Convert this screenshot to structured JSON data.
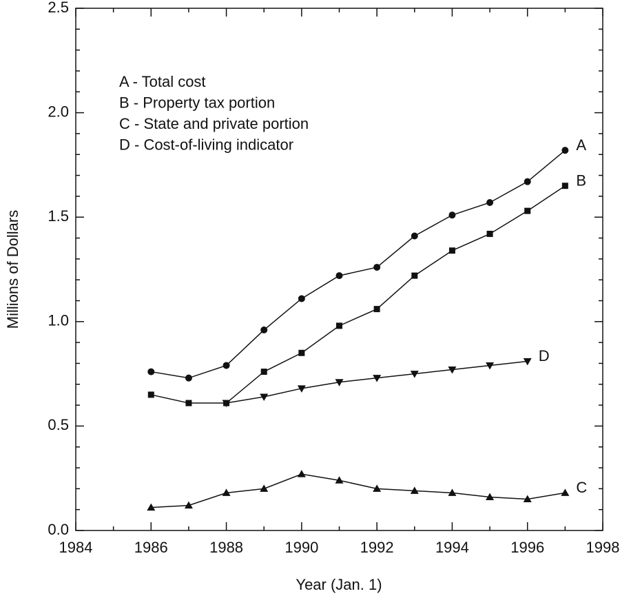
{
  "chart_data": {
    "type": "line",
    "xlabel": "Year (Jan. 1)",
    "ylabel": "Millions of Dollars",
    "x": [
      1986,
      1987,
      1988,
      1989,
      1990,
      1991,
      1992,
      1993,
      1994,
      1995,
      1996,
      1997
    ],
    "series": [
      {
        "name": "A - Total cost",
        "label": "A",
        "marker": "circle",
        "color": "#111111",
        "values": [
          0.76,
          0.73,
          0.79,
          0.96,
          1.11,
          1.22,
          1.26,
          1.41,
          1.51,
          1.57,
          1.67,
          1.82
        ]
      },
      {
        "name": "B - Property tax portion",
        "label": "B",
        "marker": "square",
        "color": "#111111",
        "values": [
          0.65,
          0.61,
          0.61,
          0.76,
          0.85,
          0.98,
          1.06,
          1.22,
          1.34,
          1.42,
          1.53,
          1.65
        ]
      },
      {
        "name": "C - State and private portion",
        "label": "C",
        "marker": "triangle-up",
        "color": "#111111",
        "values": [
          0.11,
          0.12,
          0.18,
          0.2,
          0.27,
          0.24,
          0.2,
          0.19,
          0.18,
          0.16,
          0.15,
          0.18
        ]
      },
      {
        "name": "D - Cost-of-living indicator",
        "label": "D",
        "marker": "triangle-down",
        "color": "#111111",
        "values": [
          null,
          null,
          0.61,
          0.64,
          0.68,
          0.71,
          0.73,
          0.75,
          0.77,
          0.79,
          0.81,
          null
        ]
      }
    ],
    "xlim": [
      1984,
      1998
    ],
    "xticks": [
      1984,
      1986,
      1988,
      1990,
      1992,
      1994,
      1996,
      1998
    ],
    "ylim": [
      0,
      2.5
    ],
    "yticks": [
      {
        "value": 0,
        "label": "0.0"
      },
      0.5,
      {
        "value": 1,
        "label": "1.0"
      },
      1.5,
      {
        "value": 2,
        "label": "2.0"
      },
      2.5
    ],
    "grid": false,
    "legend": "upper left"
  }
}
